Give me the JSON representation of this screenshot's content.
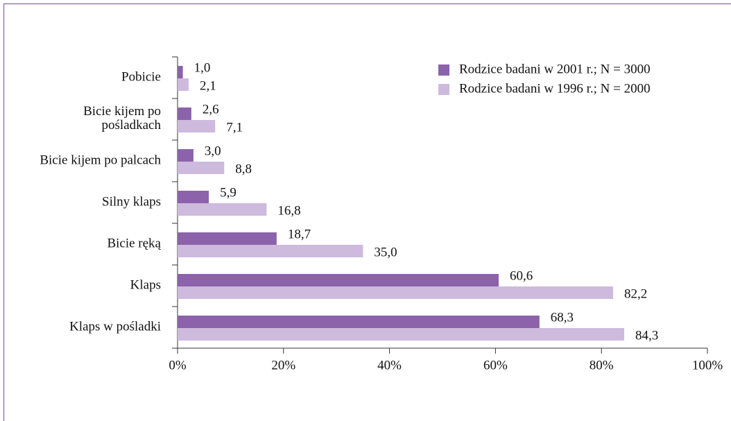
{
  "chart_data": {
    "type": "bar",
    "orientation": "horizontal",
    "categories": [
      "Pobicie",
      "Bicie kijem po pośladkach",
      "Bicie kijem po palcach",
      "Silny klaps",
      "Bicie ręką",
      "Klaps",
      "Klaps w pośladki"
    ],
    "series": [
      {
        "name": "Rodzice badani w 2001 r.; N = 3000",
        "color": "#8c62aa",
        "values": [
          1.0,
          2.6,
          3.0,
          5.9,
          18.7,
          60.6,
          68.3
        ],
        "value_labels": [
          "1,0",
          "2,6",
          "3,0",
          "5,9",
          "18,7",
          "60,6",
          "68,3"
        ]
      },
      {
        "name": "Rodzice badani w 1996 r.; N = 2000",
        "color": "#cdbadd",
        "values": [
          2.1,
          7.1,
          8.8,
          16.8,
          35.0,
          82.2,
          84.3
        ],
        "value_labels": [
          "2,1",
          "7,1",
          "8,8",
          "16,8",
          "35,0",
          "82,2",
          "84,3"
        ]
      }
    ],
    "xlim": [
      0,
      100
    ],
    "xticks": [
      {
        "value": 0,
        "label": "0%"
      },
      {
        "value": 20,
        "label": "20%"
      },
      {
        "value": 40,
        "label": "40%"
      },
      {
        "value": 60,
        "label": "60%"
      },
      {
        "value": 80,
        "label": "80%"
      },
      {
        "value": 100,
        "label": "100%"
      }
    ],
    "legend": "upper right"
  }
}
